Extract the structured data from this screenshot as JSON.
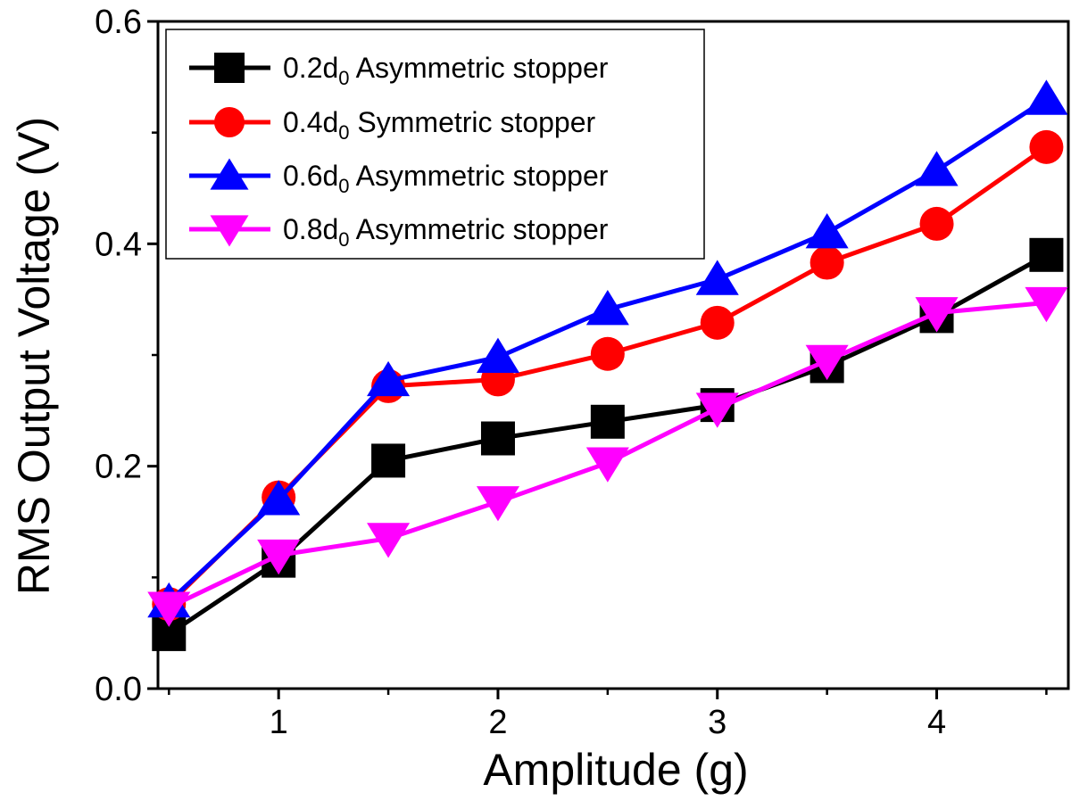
{
  "chart_data": {
    "type": "line",
    "xlabel": "Amplitude (g)",
    "ylabel": "RMS Output Voltage (V)",
    "xlim": [
      0.45,
      4.6
    ],
    "ylim": [
      0.0,
      0.6
    ],
    "xticks": [
      1,
      2,
      3,
      4
    ],
    "xtick_labels": [
      "1",
      "2",
      "3",
      "4"
    ],
    "yticks": [
      0.0,
      0.2,
      0.4,
      0.6
    ],
    "ytick_labels": [
      "0.0",
      "0.2",
      "0.4",
      "0.6"
    ],
    "legend_position": "top-left",
    "x": [
      0.5,
      1.0,
      1.5,
      2.0,
      2.5,
      3.0,
      3.5,
      4.0,
      4.5
    ],
    "series": [
      {
        "name": "0.2d0 Asymmetric stopper",
        "legend_main": "0.2d",
        "legend_sub": "0",
        "legend_rest": " Asymmetric stopper",
        "color": "#000000",
        "marker": "square",
        "values": [
          0.049,
          0.115,
          0.205,
          0.225,
          0.24,
          0.255,
          0.29,
          0.335,
          0.39
        ]
      },
      {
        "name": "0.4d0 Symmetric stopper",
        "legend_main": "0.4d",
        "legend_sub": "0",
        "legend_rest": " Symmetric stopper",
        "color": "#ff0000",
        "marker": "circle",
        "values": [
          0.076,
          0.172,
          0.272,
          0.278,
          0.301,
          0.329,
          0.383,
          0.418,
          0.487
        ]
      },
      {
        "name": "0.6d0 Asymmetric stopper",
        "legend_main": "0.6d",
        "legend_sub": "0",
        "legend_rest": " Asymmetric stopper",
        "color": "#0000ff",
        "marker": "triangle-up",
        "values": [
          0.078,
          0.17,
          0.277,
          0.298,
          0.341,
          0.368,
          0.41,
          0.466,
          0.53
        ]
      },
      {
        "name": "0.8d0 Asymmetric stopper",
        "legend_main": "0.8d",
        "legend_sub": "0",
        "legend_rest": " Asymmetric stopper",
        "color": "#ff00ff",
        "marker": "triangle-down",
        "values": [
          0.073,
          0.12,
          0.135,
          0.168,
          0.203,
          0.252,
          0.295,
          0.338,
          0.347
        ]
      }
    ]
  }
}
